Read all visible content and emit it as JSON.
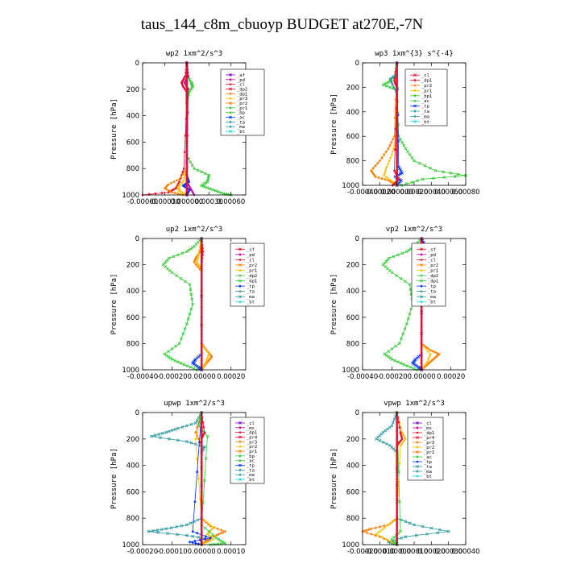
{
  "title": "taus_144_c8m_cbuoyp  BUDGET at270E,-7N",
  "colors": {
    "red": "#e8112d",
    "magenta": "#c8009c",
    "orange": "#ff7f00",
    "yellow": "#ffc000",
    "green": "#33cc33",
    "blue": "#0033ff",
    "teal": "#2a9aa0",
    "purple": "#7a00c8",
    "cyan": "#22d5e6"
  },
  "chart_data": [
    {
      "type": "line",
      "title": "wp2  1xm^2/s^3",
      "ylabel": "Pressure [hPa]",
      "ylim": [
        1000,
        0
      ],
      "xlim": [
        -0.0006,
        0.0008
      ],
      "xticks": [
        "-0.00060",
        "-0.00030",
        "0.000000",
        "0.00030",
        "0.00060"
      ],
      "xtick_values": [
        -0.0006,
        -0.0003,
        0.0,
        0.0003,
        0.0006
      ],
      "yticks": [
        "0",
        "200",
        "400",
        "600",
        "800",
        "1000"
      ],
      "legend": [
        "_af",
        "_pd",
        "_cl",
        "_dp2",
        "_dp1",
        "_pr3",
        "_pr2",
        "_pr1",
        "_bp",
        "_ac",
        "_ta",
        "_ma",
        "_bt"
      ],
      "legend_colors": [
        "purple",
        "magenta",
        "red",
        "red",
        "orange",
        "yellow",
        "orange",
        "green",
        "green",
        "blue",
        "teal",
        "teal",
        "cyan"
      ],
      "series": [
        {
          "color": "green",
          "p": [
            0,
            100,
            150,
            180,
            220,
            300,
            700,
            800,
            850,
            900,
            930,
            960,
            990,
            1000
          ],
          "v": [
            0,
            1e-05,
            6e-05,
            8e-05,
            3e-05,
            0,
            0,
            0.0001,
            0.0003,
            0.00028,
            0.0002,
            0.00035,
            0.0005,
            0.0006
          ]
        },
        {
          "color": "red",
          "p": [
            0,
            100,
            130,
            150,
            180,
            220,
            300,
            800,
            900,
            950,
            980,
            1000
          ],
          "v": [
            0,
            -2e-05,
            -5e-05,
            -7e-05,
            -5e-05,
            0,
            0,
            -4e-05,
            -0.0001,
            -0.00015,
            -0.00025,
            -0.0006
          ]
        },
        {
          "color": "orange",
          "p": [
            0,
            800,
            880,
            920,
            950,
            980,
            1000
          ],
          "v": [
            0,
            0,
            -0.0001,
            -0.00025,
            -0.0003,
            -0.0002,
            -5e-05
          ]
        },
        {
          "color": "yellow",
          "p": [
            0,
            800,
            900,
            940,
            970,
            1000
          ],
          "v": [
            0,
            0,
            -5e-05,
            -0.00012,
            -0.0001,
            0
          ]
        },
        {
          "color": "blue",
          "p": [
            0,
            850,
            900,
            930,
            960,
            1000
          ],
          "v": [
            0,
            0,
            3e-05,
            -5e-05,
            4e-05,
            0
          ]
        },
        {
          "color": "magenta",
          "p": [
            0,
            100,
            150,
            200,
            900,
            950,
            1000
          ],
          "v": [
            0,
            2e-05,
            -3e-05,
            2e-05,
            0,
            5e-05,
            0.0001
          ]
        },
        {
          "color": "purple",
          "p": [
            0,
            1000
          ],
          "v": [
            0,
            0
          ]
        }
      ]
    },
    {
      "type": "line",
      "title": "wp3  1xm^{3} s^{-4}",
      "ylabel": "Pressure [hPa]",
      "ylim": [
        1000,
        0
      ],
      "xlim": [
        -0.0004,
        0.0008
      ],
      "xticks": [
        "-0.00040",
        "-0.00020",
        "0.000000",
        "0.00020",
        "0.00040",
        "0.00060",
        "0.00080"
      ],
      "xtick_values": [
        -0.0004,
        -0.0002,
        0.0,
        0.0002,
        0.0004,
        0.0006,
        0.0008
      ],
      "yticks": [
        "0",
        "200",
        "400",
        "600",
        "800",
        "1000"
      ],
      "legend": [
        "_cl",
        "_dp1",
        "_pr2",
        "_pr1",
        "_bp1",
        "_ac",
        "_tp",
        "_ta",
        "_ma",
        "_bt"
      ],
      "legend_colors": [
        "red",
        "red",
        "orange",
        "yellow",
        "green",
        "green",
        "blue",
        "teal",
        "teal",
        "cyan"
      ],
      "series": [
        {
          "color": "green",
          "p": [
            0,
            100,
            150,
            180,
            220,
            600,
            700,
            800,
            880,
            920,
            950,
            1000
          ],
          "v": [
            0,
            -2e-05,
            -8e-05,
            -0.00016,
            0,
            2e-05,
            0.0001,
            0.0002,
            0.00045,
            0.0008,
            0.0003,
            5e-05
          ]
        },
        {
          "color": "orange",
          "p": [
            0,
            600,
            700,
            800,
            880,
            930,
            960,
            1000
          ],
          "v": [
            0,
            -3e-05,
            -0.0001,
            -0.0002,
            -0.0003,
            -0.00025,
            -0.0001,
            0
          ]
        },
        {
          "color": "yellow",
          "p": [
            0,
            650,
            750,
            850,
            920,
            970,
            1000
          ],
          "v": [
            0,
            -2e-05,
            -6e-05,
            -0.00012,
            -0.00015,
            -5e-05,
            0
          ]
        },
        {
          "color": "blue",
          "p": [
            0,
            850,
            900,
            930,
            960,
            1000
          ],
          "v": [
            0,
            2e-05,
            6e-05,
            -2e-05,
            5e-05,
            0
          ]
        },
        {
          "color": "red",
          "p": [
            0,
            100,
            150,
            200,
            880,
            950,
            1000
          ],
          "v": [
            0,
            -2e-05,
            -3e-05,
            0,
            -3e-05,
            2e-05,
            -5e-05
          ]
        },
        {
          "color": "teal",
          "p": [
            0,
            100,
            130,
            180,
            250,
            1000
          ],
          "v": [
            0,
            -1e-05,
            -8e-05,
            -5e-05,
            0,
            0
          ]
        }
      ]
    },
    {
      "type": "line",
      "title": "up2  1xm^2/s^3",
      "ylabel": "Pressure [hPa]",
      "ylim": [
        1000,
        0
      ],
      "xlim": [
        -0.0004,
        0.0003
      ],
      "xticks": [
        "-0.00040",
        "-0.00020",
        "0.00000",
        "0.00020"
      ],
      "xtick_values": [
        -0.0004,
        -0.0002,
        0.0,
        0.0002
      ],
      "yticks": [
        "0",
        "200",
        "400",
        "600",
        "800",
        "1000"
      ],
      "legend": [
        "_sf",
        "_pd",
        "_cl",
        "_pr2",
        "_pr1",
        "_dp2",
        "_dp1",
        "_tp",
        "_ta",
        "_ma",
        "_bt"
      ],
      "legend_colors": [
        "red",
        "magenta",
        "red",
        "orange",
        "yellow",
        "green",
        "green",
        "blue",
        "teal",
        "teal",
        "cyan"
      ],
      "series": [
        {
          "color": "green",
          "p": [
            0,
            60,
            100,
            150,
            200,
            260,
            350,
            500,
            650,
            800,
            880,
            920,
            960,
            1000
          ],
          "v": [
            0,
            -5e-05,
            -0.0001,
            -0.00022,
            -0.00026,
            -0.0002,
            -8e-05,
            -6e-05,
            -0.0001,
            -0.00015,
            -0.00025,
            -0.0002,
            -0.00012,
            -3e-05
          ]
        },
        {
          "color": "orange",
          "p": [
            0,
            100,
            150,
            180,
            250,
            800,
            860,
            900,
            940,
            1000
          ],
          "v": [
            0,
            -1e-05,
            -4e-05,
            -5e-05,
            0,
            0,
            4e-05,
            7e-05,
            4e-05,
            0
          ]
        },
        {
          "color": "yellow",
          "p": [
            0,
            120,
            180,
            240,
            800,
            880,
            940,
            1000
          ],
          "v": [
            0,
            -2e-05,
            -3e-05,
            0,
            0,
            5e-05,
            3e-05,
            0
          ]
        },
        {
          "color": "blue",
          "p": [
            0,
            880,
            920,
            950,
            980,
            1000
          ],
          "v": [
            0,
            0,
            -4e-05,
            -6e-05,
            -2e-05,
            0
          ]
        },
        {
          "color": "red",
          "p": [
            0,
            100,
            200,
            1000
          ],
          "v": [
            0,
            1e-05,
            0,
            0
          ]
        }
      ]
    },
    {
      "type": "line",
      "title": "vp2  1xm^2/s^3",
      "ylabel": "Pressure [hPa]",
      "ylim": [
        1000,
        0
      ],
      "xlim": [
        -0.0004,
        0.0003
      ],
      "xticks": [
        "-0.00040",
        "-0.00020",
        "0.00000",
        "0.00020"
      ],
      "xtick_values": [
        -0.0004,
        -0.0002,
        0.0,
        0.0002
      ],
      "yticks": [
        "0",
        "200",
        "400",
        "600",
        "800",
        "1000"
      ],
      "legend": [
        "_sf",
        "_pd",
        "_cl",
        "_pr2",
        "_pr1",
        "_dp2",
        "_dp1",
        "_tp",
        "_ta",
        "_ma",
        "_bt"
      ],
      "legend_colors": [
        "red",
        "magenta",
        "red",
        "orange",
        "yellow",
        "green",
        "green",
        "blue",
        "teal",
        "teal",
        "cyan"
      ],
      "series": [
        {
          "color": "green",
          "p": [
            0,
            60,
            100,
            150,
            200,
            260,
            350,
            500,
            650,
            800,
            880,
            920,
            960,
            1000
          ],
          "v": [
            0,
            -5e-05,
            -0.0001,
            -0.00022,
            -0.00026,
            -0.0002,
            -8e-05,
            -6e-05,
            -0.0001,
            -0.00015,
            -0.00025,
            -0.0002,
            -0.00012,
            -3e-05
          ]
        },
        {
          "color": "orange",
          "p": [
            0,
            100,
            150,
            180,
            250,
            800,
            850,
            880,
            920,
            960,
            1000
          ],
          "v": [
            0,
            -1e-05,
            -4e-05,
            -5e-05,
            0,
            0,
            6e-05,
            0.00012,
            8e-05,
            4e-05,
            0
          ]
        },
        {
          "color": "yellow",
          "p": [
            0,
            120,
            180,
            240,
            800,
            880,
            940,
            1000
          ],
          "v": [
            0,
            -2e-05,
            -3e-05,
            0,
            0,
            6e-05,
            4e-05,
            0
          ]
        },
        {
          "color": "blue",
          "p": [
            0,
            60,
            120,
            180,
            250,
            880,
            920,
            950,
            980,
            1000
          ],
          "v": [
            0,
            3e-05,
            7e-05,
            4e-05,
            0,
            0,
            -4e-05,
            -6e-05,
            -2e-05,
            0
          ]
        },
        {
          "color": "red",
          "p": [
            0,
            100,
            200,
            1000
          ],
          "v": [
            0,
            1e-05,
            0,
            0
          ]
        }
      ]
    },
    {
      "type": "line",
      "title": "upwp  1xm^2/s^3",
      "ylabel": "Pressure [hPa]",
      "ylim": [
        1000,
        0
      ],
      "xlim": [
        -0.0002,
        0.00015
      ],
      "xticks": [
        "-0.00020",
        "-0.00010",
        "0.00000",
        "0.00010"
      ],
      "xtick_values": [
        -0.0002,
        -0.0001,
        0.0,
        0.0001
      ],
      "yticks": [
        "0",
        "200",
        "400",
        "600",
        "800",
        "1000"
      ],
      "legend": [
        "_cl",
        "_ms",
        "_dp1",
        "_pr4",
        "_pr3",
        "_pr2",
        "_pr1",
        "_bp",
        "_ac",
        "_tp",
        "_ta",
        "_ma",
        "_bt"
      ],
      "legend_colors": [
        "purple",
        "magenta",
        "red",
        "red",
        "orange",
        "yellow",
        "orange",
        "green",
        "green",
        "blue",
        "teal",
        "teal",
        "cyan"
      ],
      "series": [
        {
          "color": "teal",
          "p": [
            0,
            80,
            120,
            150,
            180,
            220,
            260,
            300,
            800,
            850,
            880,
            900,
            930,
            960,
            1000
          ],
          "v": [
            0,
            -2e-05,
            -8e-05,
            -0.00012,
            -0.00017,
            -5e-05,
            1e-05,
            0,
            0,
            -5e-05,
            -0.00012,
            -0.00018,
            -5e-05,
            3e-05,
            0
          ]
        },
        {
          "color": "orange",
          "p": [
            0,
            150,
            250,
            800,
            860,
            900,
            930,
            960,
            1000
          ],
          "v": [
            0,
            -2e-05,
            0,
            0,
            3e-05,
            8e-05,
            5e-05,
            2e-05,
            0
          ]
        },
        {
          "color": "yellow",
          "p": [
            0,
            200,
            800,
            870,
            920,
            960,
            1000
          ],
          "v": [
            0,
            -2e-05,
            0,
            4e-05,
            2e-05,
            4e-05,
            0
          ]
        },
        {
          "color": "green",
          "p": [
            0,
            100,
            180,
            850,
            950,
            990,
            1000
          ],
          "v": [
            0,
            -1e-05,
            2e-05,
            0,
            5e-05,
            8e-05,
            3e-05
          ]
        },
        {
          "color": "blue",
          "p": [
            0,
            900,
            950,
            980,
            1000
          ],
          "v": [
            0,
            -3e-05,
            3e-05,
            -4e-05,
            0
          ]
        },
        {
          "color": "red",
          "p": [
            0,
            150,
            200,
            1000
          ],
          "v": [
            0,
            1e-05,
            0,
            0
          ]
        }
      ]
    },
    {
      "type": "line",
      "title": "vpwp  1xm^2/s^3",
      "ylabel": "Pressure [hPa]",
      "ylim": [
        1000,
        0
      ],
      "xlim": [
        -0.0002,
        0.0004
      ],
      "xticks": [
        "-0.00020",
        "-0.00010",
        "0.00000",
        "0.00010",
        "0.00020",
        "0.00030",
        "0.00040"
      ],
      "xtick_values": [
        -0.0002,
        -0.0001,
        0.0,
        0.0001,
        0.0002,
        0.0003,
        0.0004
      ],
      "yticks": [
        "0",
        "200",
        "400",
        "600",
        "800",
        "1000"
      ],
      "legend": [
        "_cl",
        "_ms",
        "_dp1",
        "_pr4",
        "_pr3",
        "_pr2",
        "_pr1",
        "_ac",
        "_tp",
        "_ta",
        "_ma",
        "_bt"
      ],
      "legend_colors": [
        "purple",
        "magenta",
        "red",
        "red",
        "orange",
        "yellow",
        "orange",
        "green",
        "blue",
        "teal",
        "teal",
        "cyan"
      ],
      "series": [
        {
          "color": "teal",
          "p": [
            0,
            100,
            150,
            200,
            250,
            300,
            800,
            850,
            900,
            940,
            980,
            1000
          ],
          "v": [
            0,
            -3e-05,
            -8e-05,
            -0.00012,
            -4e-05,
            0,
            0,
            0.0001,
            0.0003,
            5e-05,
            -5e-05,
            0
          ]
        },
        {
          "color": "orange",
          "p": [
            0,
            800,
            850,
            880,
            900,
            940,
            1000
          ],
          "v": [
            0,
            0,
            -5e-05,
            -0.00015,
            -0.0002,
            -0.0001,
            0
          ]
        },
        {
          "color": "yellow",
          "p": [
            0,
            150,
            200,
            250,
            800,
            870,
            920,
            1000
          ],
          "v": [
            0,
            3e-05,
            5e-05,
            2e-05,
            0,
            -7e-05,
            -0.00012,
            0
          ]
        },
        {
          "color": "green",
          "p": [
            0,
            900,
            960,
            1000
          ],
          "v": [
            0,
            2e-05,
            -3e-05,
            0
          ]
        },
        {
          "color": "red",
          "p": [
            0,
            150,
            200,
            250,
            1000
          ],
          "v": [
            0,
            2e-05,
            3e-05,
            0,
            0
          ]
        }
      ]
    }
  ]
}
